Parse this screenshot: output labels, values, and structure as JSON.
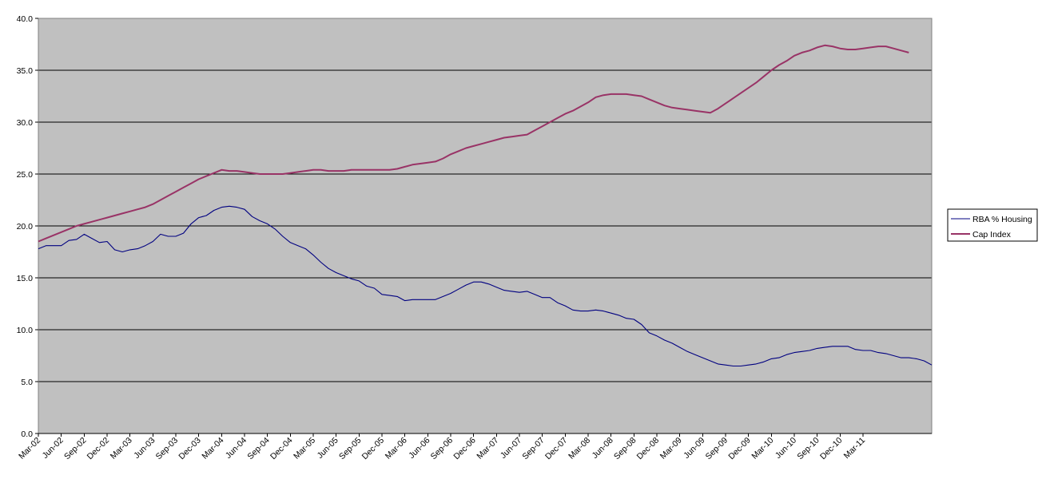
{
  "chart_data": {
    "type": "line",
    "title": "",
    "xlabel": "",
    "ylabel": "",
    "ylim": [
      0,
      40
    ],
    "grid": true,
    "legend_position": "right",
    "plot_background": "#c0c0c0",
    "y_ticks": [
      "0.0",
      "5.0",
      "10.0",
      "15.0",
      "20.0",
      "25.0",
      "30.0",
      "35.0",
      "40.0"
    ],
    "x_tick_labels": [
      "Mar-02",
      "Jun-02",
      "Sep-02",
      "Dec-02",
      "Mar-03",
      "Jun-03",
      "Sep-03",
      "Dec-03",
      "Mar-04",
      "Jun-04",
      "Sep-04",
      "Dec-04",
      "Mar-05",
      "Jun-05",
      "Sep-05",
      "Dec-05",
      "Mar-06",
      "Jun-06",
      "Sep-06",
      "Dec-06",
      "Mar-07",
      "Jun-07",
      "Sep-07",
      "Dec-07",
      "Mar-08",
      "Jun-08",
      "Sep-08",
      "Dec-08",
      "Mar-09",
      "Jun-09",
      "Sep-09",
      "Dec-09",
      "Mar-10",
      "Jun-10",
      "Sep-10",
      "Dec-10",
      "Mar-11"
    ],
    "x_start": "2002-03",
    "series": [
      {
        "name": "RBA % Housing",
        "color": "#000080",
        "values": [
          17.8,
          18.1,
          18.1,
          18.1,
          18.6,
          18.7,
          19.2,
          18.8,
          18.4,
          18.5,
          17.7,
          17.5,
          17.7,
          17.8,
          18.1,
          18.5,
          19.2,
          19.0,
          19.0,
          19.3,
          20.2,
          20.8,
          21.0,
          21.5,
          21.8,
          21.9,
          21.8,
          21.6,
          20.9,
          20.5,
          20.2,
          19.7,
          19.0,
          18.4,
          18.1,
          17.8,
          17.2,
          16.5,
          15.9,
          15.5,
          15.2,
          14.9,
          14.7,
          14.2,
          14.0,
          13.4,
          13.3,
          13.2,
          12.8,
          12.9,
          12.9,
          12.9,
          12.9,
          13.2,
          13.5,
          13.9,
          14.3,
          14.6,
          14.6,
          14.4,
          14.1,
          13.8,
          13.7,
          13.6,
          13.7,
          13.4,
          13.1,
          13.1,
          12.6,
          12.3,
          11.9,
          11.8,
          11.8,
          11.9,
          11.8,
          11.6,
          11.4,
          11.1,
          11.0,
          10.5,
          9.7,
          9.4,
          9.0,
          8.7,
          8.3,
          7.9,
          7.6,
          7.3,
          7.0,
          6.7,
          6.6,
          6.5,
          6.5,
          6.6,
          6.7,
          6.9,
          7.2,
          7.3,
          7.6,
          7.8,
          7.9,
          8.0,
          8.2,
          8.3,
          8.4,
          8.4,
          8.4,
          8.1,
          8.0,
          8.0,
          7.8,
          7.7,
          7.5,
          7.3,
          7.3,
          7.2,
          7.0,
          6.6
        ]
      },
      {
        "name": "Cap Index",
        "color": "#993366",
        "values": [
          18.5,
          18.8,
          19.1,
          19.4,
          19.7,
          20.0,
          20.2,
          20.4,
          20.6,
          20.8,
          21.0,
          21.2,
          21.4,
          21.6,
          21.8,
          22.1,
          22.5,
          22.9,
          23.3,
          23.7,
          24.1,
          24.5,
          24.8,
          25.1,
          25.4,
          25.3,
          25.3,
          25.2,
          25.1,
          25.0,
          25.0,
          25.0,
          25.0,
          25.1,
          25.2,
          25.3,
          25.4,
          25.4,
          25.3,
          25.3,
          25.3,
          25.4,
          25.4,
          25.4,
          25.4,
          25.4,
          25.4,
          25.5,
          25.7,
          25.9,
          26.0,
          26.1,
          26.2,
          26.5,
          26.9,
          27.2,
          27.5,
          27.7,
          27.9,
          28.1,
          28.3,
          28.5,
          28.6,
          28.7,
          28.8,
          29.2,
          29.6,
          30.0,
          30.4,
          30.8,
          31.1,
          31.5,
          31.9,
          32.4,
          32.6,
          32.7,
          32.7,
          32.7,
          32.6,
          32.5,
          32.2,
          31.9,
          31.6,
          31.4,
          31.3,
          31.2,
          31.1,
          31.0,
          30.9,
          31.3,
          31.8,
          32.3,
          32.8,
          33.3,
          33.8,
          34.4,
          35.0,
          35.5,
          35.9,
          36.4,
          36.7,
          36.9,
          37.2,
          37.4,
          37.3,
          37.1,
          37.0,
          37.0,
          37.1,
          37.2,
          37.3,
          37.3,
          37.1,
          36.9,
          36.7
        ]
      }
    ]
  }
}
